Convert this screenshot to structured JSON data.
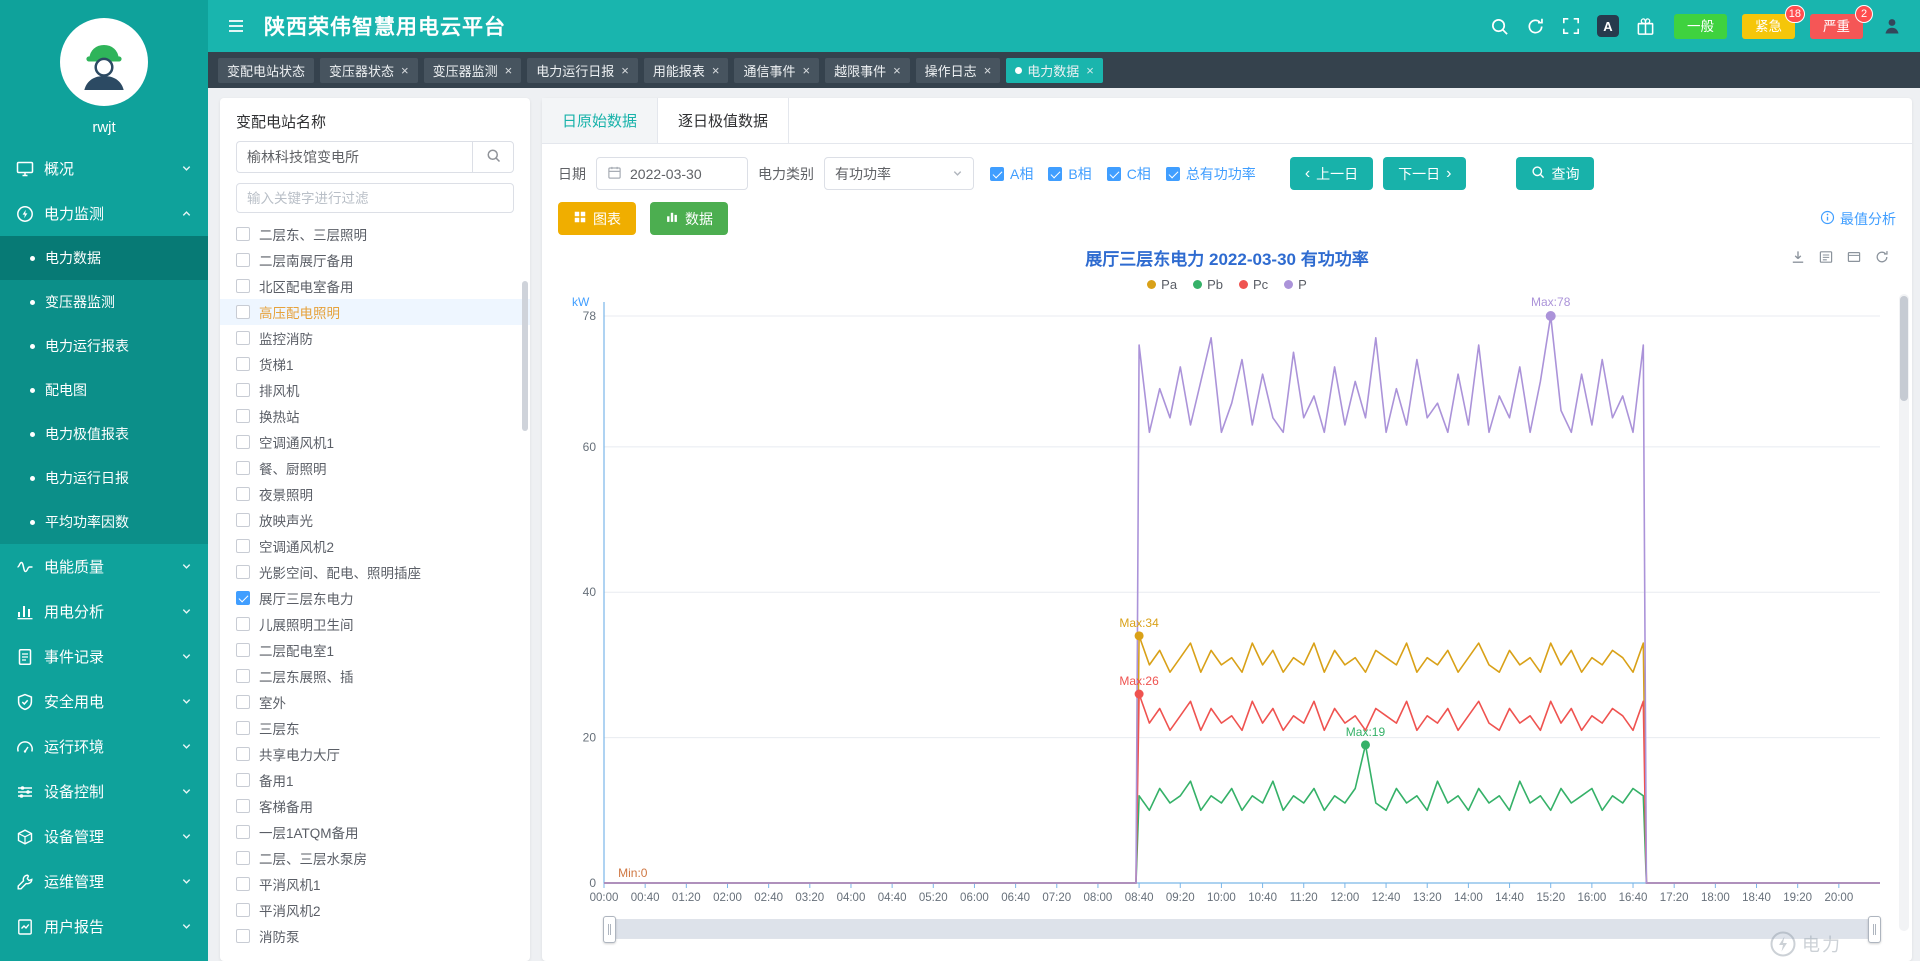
{
  "header": {
    "title": "陕西荣伟智慧用电云平台",
    "font_icon_label": "A",
    "alarm_buttons": [
      {
        "key": "normal",
        "label": "一般",
        "color": "#3fd23f",
        "count": ""
      },
      {
        "key": "urgent",
        "label": "紧急",
        "color": "#f5c60a",
        "count": "18"
      },
      {
        "key": "severe",
        "label": "严重",
        "color": "#f55656",
        "count": "2"
      }
    ]
  },
  "sidebar": {
    "username": "rwjt",
    "menu": [
      {
        "key": "overview",
        "icon": "monitor",
        "label": "概况",
        "expanded": false
      },
      {
        "key": "power-monitoring",
        "icon": "bolt",
        "label": "电力监测",
        "expanded": true,
        "children": [
          {
            "key": "power-data",
            "label": "电力数据",
            "active": true
          },
          {
            "key": "transformer-monitoring",
            "label": "变压器监测"
          },
          {
            "key": "power-operation-report",
            "label": "电力运行报表"
          },
          {
            "key": "distribution-diagram",
            "label": "配电图"
          },
          {
            "key": "power-extreme-report",
            "label": "电力极值报表"
          },
          {
            "key": "power-daily-report",
            "label": "电力运行日报"
          },
          {
            "key": "average-power-factor",
            "label": "平均功率因数"
          }
        ]
      },
      {
        "key": "power-quality",
        "icon": "wave",
        "label": "电能质量"
      },
      {
        "key": "power-analysis",
        "icon": "bars",
        "label": "用电分析"
      },
      {
        "key": "event-record",
        "icon": "doc",
        "label": "事件记录"
      },
      {
        "key": "safe-power",
        "icon": "shield",
        "label": "安全用电"
      },
      {
        "key": "environment",
        "icon": "gauge",
        "label": "运行环境"
      },
      {
        "key": "device-control",
        "icon": "sliders",
        "label": "设备控制"
      },
      {
        "key": "device-management",
        "icon": "box",
        "label": "设备管理"
      },
      {
        "key": "ops-management",
        "icon": "wrench",
        "label": "运维管理"
      },
      {
        "key": "user-report",
        "icon": "report",
        "label": "用户报告"
      }
    ]
  },
  "tag_tabs": [
    {
      "key": "station-status",
      "label": "变配电站状态",
      "closable": false,
      "active": false
    },
    {
      "key": "transformer-status",
      "label": "变压器状态",
      "closable": true,
      "active": false
    },
    {
      "key": "transformer-monitor",
      "label": "变压器监测",
      "closable": true,
      "active": false
    },
    {
      "key": "power-daily-report",
      "label": "电力运行日报",
      "closable": true,
      "active": false
    },
    {
      "key": "energy-report",
      "label": "用能报表",
      "closable": true,
      "active": false
    },
    {
      "key": "comm-event",
      "label": "通信事件",
      "closable": true,
      "active": false
    },
    {
      "key": "limit-event",
      "label": "越限事件",
      "closable": true,
      "active": false
    },
    {
      "key": "operation-log",
      "label": "操作日志",
      "closable": true,
      "active": false
    },
    {
      "key": "power-data",
      "label": "电力数据",
      "closable": true,
      "active": true
    }
  ],
  "station_panel": {
    "title": "变配电站名称",
    "search_value": "榆林科技馆变电所",
    "filter_placeholder": "输入关键字进行过滤",
    "items": [
      {
        "label": "二层东、三层照明"
      },
      {
        "label": "二层南展厅备用"
      },
      {
        "label": "北区配电室备用"
      },
      {
        "label": "高压配电照明",
        "highlighted": true
      },
      {
        "label": "监控消防"
      },
      {
        "label": "货梯1"
      },
      {
        "label": "排风机"
      },
      {
        "label": "换热站"
      },
      {
        "label": "空调通风机1"
      },
      {
        "label": "餐、厨照明"
      },
      {
        "label": "夜景照明"
      },
      {
        "label": "放映声光"
      },
      {
        "label": "空调通风机2"
      },
      {
        "label": "光影空间、配电、照明插座"
      },
      {
        "label": "展厅三层东电力",
        "checked": true
      },
      {
        "label": "儿展照明卫生间"
      },
      {
        "label": "二层配电室1"
      },
      {
        "label": "二层东展照、插"
      },
      {
        "label": "室外"
      },
      {
        "label": "三层东"
      },
      {
        "label": "共享电力大厅"
      },
      {
        "label": "备用1"
      },
      {
        "label": "客梯备用"
      },
      {
        "label": "一层1ATQM备用"
      },
      {
        "label": "二层、三层水泵房"
      },
      {
        "label": "平消风机1"
      },
      {
        "label": "平消风机2"
      },
      {
        "label": "消防泵"
      }
    ]
  },
  "content": {
    "tabs": [
      {
        "key": "daily-raw-data",
        "label": "日原始数据",
        "active": true
      },
      {
        "key": "daily-extreme-data",
        "label": "逐日极值数据",
        "active": false
      }
    ],
    "filters": {
      "date_label": "日期",
      "date_value": "2022-03-30",
      "category_label": "电力类别",
      "category_value": "有功功率",
      "phases": [
        {
          "key": "a",
          "label": "A相",
          "checked": true
        },
        {
          "key": "b",
          "label": "B相",
          "checked": true
        },
        {
          "key": "c",
          "label": "C相",
          "checked": true
        },
        {
          "key": "total",
          "label": "总有功功率",
          "checked": true
        }
      ],
      "prev_label": "上一日",
      "next_label": "下一日",
      "query_label": "查询"
    },
    "view_buttons": {
      "chart_label": "图表",
      "data_label": "数据"
    },
    "analysis_link": "最值分析"
  },
  "watermark": {
    "text": "电力"
  },
  "chart_data": {
    "type": "line",
    "title": "展厅三层东电力  2022-03-30  有功功率",
    "unit": "kW",
    "y_ticks": [
      0,
      20,
      40,
      60,
      78
    ],
    "y_max": 78,
    "x_tick_interval_minutes": 40,
    "x_max_minutes": 1240,
    "x_ticks": [
      "00:00",
      "00:40",
      "01:20",
      "02:00",
      "02:40",
      "03:20",
      "04:00",
      "04:40",
      "05:20",
      "06:00",
      "06:40",
      "07:20",
      "08:00",
      "08:40",
      "09:20",
      "10:00",
      "10:40",
      "11:20",
      "12:00",
      "12:40",
      "13:20",
      "14:00",
      "14:40",
      "15:20",
      "16:00",
      "16:40",
      "17:20",
      "18:00",
      "18:40",
      "19:20",
      "20:00"
    ],
    "legend_position": "top",
    "grid": true,
    "series": [
      {
        "name": "Pa",
        "color": "#d9a118",
        "start_minute": 520,
        "step_minutes": 10,
        "values": [
          34,
          30,
          32,
          29,
          31,
          33,
          29,
          32,
          30,
          31,
          29,
          33,
          30,
          32,
          29,
          31,
          30,
          33,
          29,
          32,
          30,
          31,
          29,
          32,
          31,
          30,
          33,
          29,
          31,
          30,
          32,
          29,
          31,
          33,
          30,
          29,
          32,
          30,
          31,
          29,
          33,
          30,
          32,
          29,
          31,
          30,
          32,
          31,
          29,
          33
        ]
      },
      {
        "name": "Pb",
        "color": "#35b168",
        "start_minute": 520,
        "step_minutes": 10,
        "values": [
          12,
          10,
          13,
          11,
          12,
          14,
          10,
          12,
          11,
          13,
          10,
          12,
          11,
          14,
          10,
          12,
          11,
          13,
          10,
          12,
          11,
          13,
          19,
          11,
          10,
          13,
          11,
          12,
          10,
          14,
          11,
          12,
          10,
          13,
          11,
          12,
          10,
          14,
          11,
          12,
          10,
          13,
          11,
          12,
          13,
          10,
          12,
          11,
          13,
          12
        ]
      },
      {
        "name": "Pc",
        "color": "#ef5350",
        "start_minute": 520,
        "step_minutes": 10,
        "values": [
          26,
          22,
          24,
          21,
          23,
          25,
          21,
          24,
          22,
          23,
          21,
          25,
          22,
          24,
          21,
          23,
          22,
          25,
          21,
          24,
          22,
          23,
          21,
          24,
          23,
          22,
          25,
          21,
          23,
          22,
          24,
          21,
          23,
          25,
          22,
          21,
          24,
          22,
          23,
          21,
          25,
          22,
          24,
          21,
          23,
          22,
          24,
          23,
          21,
          25
        ]
      },
      {
        "name": "P",
        "color": "#ab93d9",
        "start_minute": 520,
        "step_minutes": 10,
        "values": [
          74,
          62,
          68,
          64,
          71,
          63,
          69,
          75,
          62,
          66,
          72,
          63,
          70,
          64,
          62,
          73,
          64,
          67,
          62,
          71,
          63,
          69,
          64,
          75,
          62,
          68,
          63,
          72,
          64,
          66,
          62,
          70,
          63,
          74,
          62,
          67,
          64,
          71,
          62,
          69,
          78,
          65,
          62,
          70,
          63,
          72,
          64,
          67,
          62,
          74
        ]
      }
    ],
    "annotations": [
      {
        "text": "Max:78",
        "x": 920,
        "y": 78,
        "color": "#ab93d9",
        "dot": true,
        "r": 5,
        "dy": -10
      },
      {
        "text": "Max:34",
        "x": 520,
        "y": 34,
        "color": "#d9a118",
        "dot": true,
        "r": 4.5,
        "dy": -9
      },
      {
        "text": "Max:26",
        "x": 520,
        "y": 26,
        "color": "#ef5350",
        "dot": true,
        "r": 4.5,
        "dy": -9
      },
      {
        "text": "Max:19",
        "x": 740,
        "y": 19,
        "color": "#35b168",
        "dot": true,
        "r": 4.5,
        "dy": -9
      },
      {
        "text": "Min:0",
        "x": 28,
        "y": 0,
        "color": "#cf7742",
        "dot": false,
        "dy": -6
      }
    ]
  }
}
